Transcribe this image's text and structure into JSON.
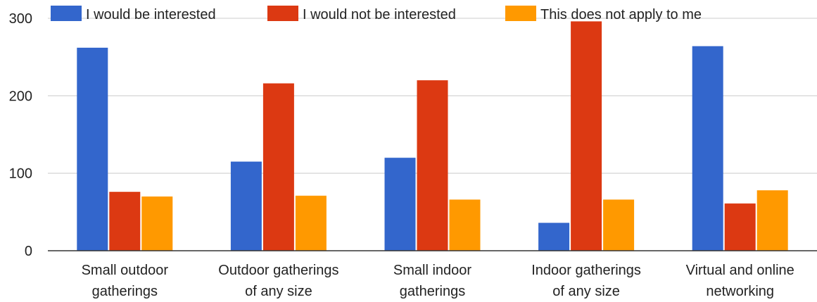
{
  "chart_data": {
    "type": "bar",
    "categories": [
      [
        "Small outdoor",
        "gatherings"
      ],
      [
        "Outdoor gatherings",
        "of any size"
      ],
      [
        "Small indoor",
        "gatherings"
      ],
      [
        "Indoor gatherings",
        "of any size"
      ],
      [
        "Virtual and online",
        "networking"
      ]
    ],
    "series": [
      {
        "name": "I would be interested",
        "color": "#3366cc",
        "values": [
          262,
          115,
          120,
          36,
          264
        ]
      },
      {
        "name": "I would not be interested",
        "color": "#dc3912",
        "values": [
          76,
          216,
          220,
          296,
          61
        ]
      },
      {
        "name": "This does not apply to me",
        "color": "#ff9900",
        "values": [
          70,
          71,
          66,
          66,
          78
        ]
      }
    ],
    "ylim": [
      0,
      300
    ],
    "yticks": [
      "0",
      "100",
      "200",
      "300"
    ],
    "yticks_values": [
      0,
      100,
      200,
      300
    ],
    "grid": true,
    "legend_position": "top"
  }
}
